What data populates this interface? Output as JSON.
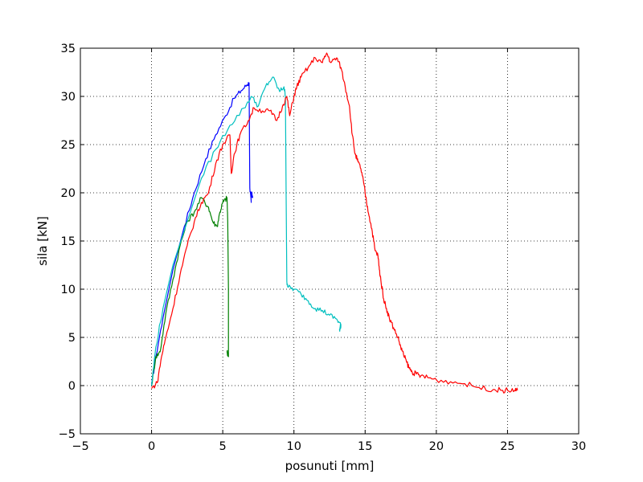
{
  "chart_data": {
    "type": "line",
    "title": "",
    "xlabel": "posunuti [mm]",
    "ylabel": "sila [kN]",
    "xlim": [
      -5,
      30
    ],
    "ylim": [
      -5,
      35
    ],
    "xticks": [
      -5,
      0,
      5,
      10,
      15,
      20,
      25,
      30
    ],
    "yticks": [
      -5,
      0,
      5,
      10,
      15,
      20,
      25,
      30,
      35
    ],
    "xtick_labels": [
      "−5",
      "0",
      "5",
      "10",
      "15",
      "20",
      "25",
      "30"
    ],
    "ytick_labels": [
      "−5",
      "0",
      "5",
      "10",
      "15",
      "20",
      "25",
      "30",
      "35"
    ],
    "grid": true,
    "grid_style": "dotted",
    "series": [
      {
        "color": "#0000ff",
        "x": [
          0,
          0.3,
          0.8,
          1.5,
          2.3,
          3.0,
          3.8,
          4.5,
          5.2,
          5.8,
          6.3,
          6.7,
          6.85,
          6.9,
          7.0,
          6.95,
          7.1,
          7.0
        ],
        "y": [
          0,
          3.0,
          7.0,
          12.0,
          16.5,
          20.0,
          23.5,
          26.0,
          28.0,
          29.8,
          30.6,
          31.2,
          31.4,
          20.5,
          19.0,
          20.0,
          19.5,
          20.0
        ]
      },
      {
        "color": "#008000",
        "x": [
          0,
          0.3,
          0.6,
          1.0,
          1.5,
          2.0,
          2.5,
          3.0,
          3.5,
          4.0,
          4.3,
          4.6,
          4.8,
          5.0,
          5.2,
          5.3,
          5.35,
          5.4,
          5.4,
          5.3,
          5.4
        ],
        "y": [
          0,
          3.0,
          3.5,
          7.5,
          11.0,
          14.5,
          17.0,
          18.0,
          19.5,
          18.5,
          17.0,
          16.5,
          18.0,
          19.0,
          19.3,
          19.5,
          17.0,
          10.0,
          3.0,
          3.5,
          3.2
        ]
      },
      {
        "color": "#00bfbf",
        "x": [
          0,
          0.3,
          0.8,
          1.5,
          2.5,
          3.5,
          4.5,
          5.5,
          6.5,
          7.0,
          7.5,
          8.0,
          8.5,
          9.0,
          9.3,
          9.4,
          9.45,
          9.5,
          9.6,
          10.0,
          10.5,
          11.0,
          11.5,
          12.0,
          12.5,
          13.0,
          13.3,
          13.2,
          13.3
        ],
        "y": [
          0,
          4.0,
          8.0,
          12.5,
          17.0,
          21.5,
          24.5,
          27.0,
          28.8,
          30.0,
          29.0,
          31.0,
          32.0,
          30.5,
          31.0,
          30.0,
          20.0,
          10.8,
          10.2,
          10.0,
          9.5,
          8.8,
          8.0,
          7.8,
          7.3,
          6.9,
          6.3,
          5.8,
          6.2
        ]
      },
      {
        "color": "#ff0000",
        "x": [
          0,
          0.4,
          0.7,
          1.0,
          1.5,
          2.0,
          2.5,
          3.0,
          3.5,
          4.0,
          4.5,
          5.0,
          5.5,
          5.6,
          5.8,
          6.2,
          6.8,
          7.2,
          7.8,
          8.3,
          8.8,
          9.2,
          9.5,
          9.7,
          10.0,
          10.2,
          10.5,
          11.0,
          11.5,
          12.0,
          12.3,
          12.6,
          13.0,
          13.3,
          13.6,
          13.9,
          14.1,
          14.3,
          14.5,
          14.7,
          14.9,
          15.1,
          15.3,
          15.5,
          15.7,
          15.9,
          16.0,
          16.1,
          16.3,
          16.5,
          16.7,
          17.0,
          17.3,
          17.5,
          17.7,
          17.9,
          18.1,
          18.3,
          18.6,
          18.9,
          19.5,
          20.0,
          21.0,
          22.0,
          23.0,
          24.0,
          24.6,
          25.0,
          25.5,
          25.7
        ],
        "y": [
          -0.3,
          0.3,
          3.0,
          5.0,
          8.0,
          11.5,
          14.5,
          17.0,
          19.0,
          20.0,
          23.0,
          25.0,
          26.0,
          22.0,
          24.0,
          26.0,
          27.5,
          28.8,
          28.5,
          28.5,
          27.5,
          29.0,
          30.0,
          28.0,
          30.0,
          31.0,
          32.0,
          33.0,
          34.0,
          33.5,
          34.5,
          33.5,
          34.0,
          33.0,
          31.0,
          29.0,
          26.0,
          24.0,
          23.2,
          22.5,
          21.0,
          19.0,
          17.5,
          16.0,
          14.0,
          13.5,
          12.0,
          11.0,
          9.0,
          8.0,
          7.0,
          6.0,
          5.0,
          4.0,
          3.2,
          2.5,
          1.8,
          1.4,
          1.2,
          1.0,
          0.8,
          0.6,
          0.4,
          0.2,
          -0.2,
          -0.4,
          -0.5,
          -0.5,
          -0.5,
          -0.5
        ]
      }
    ]
  }
}
